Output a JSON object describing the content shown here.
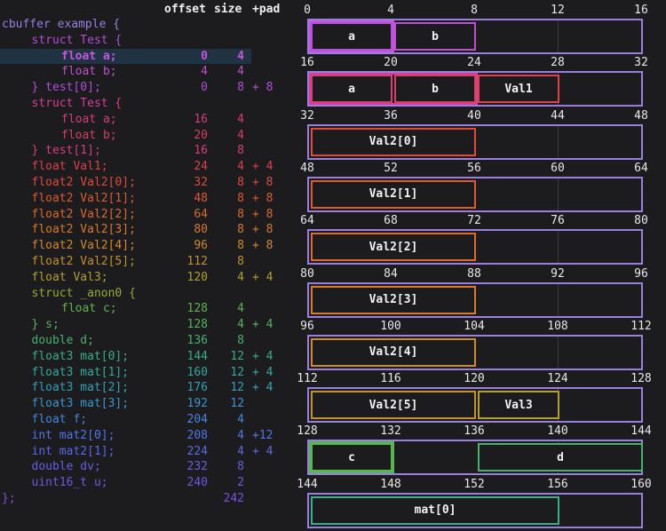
{
  "header": {
    "offset_label": "offset",
    "size_label": "size",
    "pad_label": "+pad"
  },
  "code": [
    {
      "name": "cbuffer example {",
      "indent": 0,
      "offset": "",
      "size": "",
      "pad": "",
      "color": "#9a7fe0"
    },
    {
      "name": "struct Test {",
      "indent": 1,
      "offset": "",
      "size": "",
      "pad": "",
      "color": "#b04fd8"
    },
    {
      "name": "float a;",
      "indent": 2,
      "offset": "0",
      "size": "4",
      "pad": "",
      "color": "#c656e0",
      "highlight": true
    },
    {
      "name": "float b;",
      "indent": 2,
      "offset": "4",
      "size": "4",
      "pad": "",
      "color": "#c050d0"
    },
    {
      "name": "} test[0];",
      "indent": 1,
      "offset": "0",
      "size": "8",
      "pad": "+ 8",
      "color": "#b04fd8"
    },
    {
      "name": "struct Test {",
      "indent": 1,
      "offset": "",
      "size": "",
      "pad": "",
      "color": "#d63f9a"
    },
    {
      "name": "float a;",
      "indent": 2,
      "offset": "16",
      "size": "4",
      "pad": "",
      "color": "#d63f7a"
    },
    {
      "name": "float b;",
      "indent": 2,
      "offset": "20",
      "size": "4",
      "pad": "",
      "color": "#d64060"
    },
    {
      "name": "} test[1];",
      "indent": 1,
      "offset": "16",
      "size": "8",
      "pad": "",
      "color": "#d63f7a"
    },
    {
      "name": "float Val1;",
      "indent": 1,
      "offset": "24",
      "size": "4",
      "pad": "+ 4",
      "color": "#e0404a"
    },
    {
      "name": "float2 Val2[0];",
      "indent": 1,
      "offset": "32",
      "size": "8",
      "pad": "+ 8",
      "color": "#e24a38"
    },
    {
      "name": "float2 Val2[1];",
      "indent": 1,
      "offset": "48",
      "size": "8",
      "pad": "+ 8",
      "color": "#e05a30"
    },
    {
      "name": "float2 Val2[2];",
      "indent": 1,
      "offset": "64",
      "size": "8",
      "pad": "+ 8",
      "color": "#dc6a2c"
    },
    {
      "name": "float2 Val2[3];",
      "indent": 1,
      "offset": "80",
      "size": "8",
      "pad": "+ 8",
      "color": "#d77a2a"
    },
    {
      "name": "float2 Val2[4];",
      "indent": 1,
      "offset": "96",
      "size": "8",
      "pad": "+ 8",
      "color": "#cf8a2a"
    },
    {
      "name": "float2 Val2[5];",
      "indent": 1,
      "offset": "112",
      "size": "8",
      "pad": "",
      "color": "#c2922c"
    },
    {
      "name": "float Val3;",
      "indent": 1,
      "offset": "120",
      "size": "4",
      "pad": "+ 4",
      "color": "#b0a032"
    },
    {
      "name": "struct _anon0 {",
      "indent": 1,
      "offset": "",
      "size": "",
      "pad": "",
      "color": "#92ac36"
    },
    {
      "name": "float c;",
      "indent": 2,
      "offset": "128",
      "size": "4",
      "pad": "",
      "color": "#5cb64a"
    },
    {
      "name": "} s;",
      "indent": 1,
      "offset": "128",
      "size": "4",
      "pad": "+ 4",
      "color": "#52b65a"
    },
    {
      "name": "double d;",
      "indent": 1,
      "offset": "136",
      "size": "8",
      "pad": "",
      "color": "#44b46a"
    },
    {
      "name": "float3 mat[0];",
      "indent": 1,
      "offset": "144",
      "size": "12",
      "pad": "+ 4",
      "color": "#36b088"
    },
    {
      "name": "float3 mat[1];",
      "indent": 1,
      "offset": "160",
      "size": "12",
      "pad": "+ 4",
      "color": "#30aaa0"
    },
    {
      "name": "float3 mat[2];",
      "indent": 1,
      "offset": "176",
      "size": "12",
      "pad": "+ 4",
      "color": "#32a2b8"
    },
    {
      "name": "float3 mat[3];",
      "indent": 1,
      "offset": "192",
      "size": "12",
      "pad": "",
      "color": "#3a96cc"
    },
    {
      "name": "float f;",
      "indent": 1,
      "offset": "204",
      "size": "4",
      "pad": "",
      "color": "#4488dc"
    },
    {
      "name": "int mat2[0];",
      "indent": 1,
      "offset": "208",
      "size": "4",
      "pad": "+12",
      "color": "#5078e4"
    },
    {
      "name": "int mat2[1];",
      "indent": 1,
      "offset": "224",
      "size": "4",
      "pad": "+ 4",
      "color": "#5a6ae6"
    },
    {
      "name": "double dv;",
      "indent": 1,
      "offset": "232",
      "size": "8",
      "pad": "",
      "color": "#6460e4"
    },
    {
      "name": "uint16_t u;",
      "indent": 1,
      "offset": "240",
      "size": "2",
      "pad": "",
      "color": "#6f58e2"
    },
    {
      "name": "};",
      "indent": 0,
      "offset": "",
      "size": "242",
      "pad": "",
      "color": "#7a52e0"
    }
  ],
  "layout_rows": [
    {
      "ticks": [
        "0",
        "4",
        "8",
        "12",
        "16"
      ],
      "fields": [
        {
          "label": "a",
          "start": 0,
          "end": 4,
          "color": "#b94fe0",
          "outer": "#c656e0"
        },
        {
          "label": "b",
          "start": 4,
          "end": 8,
          "color": "#c050d0"
        }
      ]
    },
    {
      "ticks": [
        "16",
        "20",
        "24",
        "28",
        "32"
      ],
      "fields": [
        {
          "label": "a",
          "start": 16,
          "end": 20,
          "color": "#d63f7a",
          "outer": "#d63f9a",
          "outer_end": 24
        },
        {
          "label": "b",
          "start": 20,
          "end": 24,
          "color": "#d64060"
        },
        {
          "label": "Val1",
          "start": 24,
          "end": 28,
          "color": "#e0404a"
        }
      ]
    },
    {
      "ticks": [
        "32",
        "36",
        "40",
        "44",
        "48"
      ],
      "fields": [
        {
          "label": "Val2[0]",
          "start": 32,
          "end": 40,
          "color": "#e24a38"
        }
      ]
    },
    {
      "ticks": [
        "48",
        "52",
        "56",
        "60",
        "64"
      ],
      "fields": [
        {
          "label": "Val2[1]",
          "start": 48,
          "end": 56,
          "color": "#e05a30"
        }
      ]
    },
    {
      "ticks": [
        "64",
        "68",
        "72",
        "76",
        "80"
      ],
      "fields": [
        {
          "label": "Val2[2]",
          "start": 64,
          "end": 72,
          "color": "#dc6a2c"
        }
      ]
    },
    {
      "ticks": [
        "80",
        "84",
        "88",
        "92",
        "96"
      ],
      "fields": [
        {
          "label": "Val2[3]",
          "start": 80,
          "end": 88,
          "color": "#d77a2a"
        }
      ]
    },
    {
      "ticks": [
        "96",
        "100",
        "104",
        "108",
        "112"
      ],
      "fields": [
        {
          "label": "Val2[4]",
          "start": 96,
          "end": 104,
          "color": "#cf8a2a"
        }
      ]
    },
    {
      "ticks": [
        "112",
        "116",
        "120",
        "124",
        "128"
      ],
      "fields": [
        {
          "label": "Val2[5]",
          "start": 112,
          "end": 120,
          "color": "#c2922c"
        },
        {
          "label": "Val3",
          "start": 120,
          "end": 124,
          "color": "#b0a032"
        }
      ]
    },
    {
      "ticks": [
        "128",
        "132",
        "136",
        "140",
        "144"
      ],
      "fields": [
        {
          "label": "c",
          "start": 128,
          "end": 132,
          "color": "#5cb64a",
          "outer": "#52b65a"
        },
        {
          "label": "d",
          "start": 136,
          "end": 144,
          "color": "#44b46a"
        }
      ]
    },
    {
      "ticks": [
        "144",
        "148",
        "152",
        "156",
        "160"
      ],
      "fields": [
        {
          "label": "mat[0]",
          "start": 144,
          "end": 156,
          "color": "#36b088"
        }
      ]
    }
  ]
}
